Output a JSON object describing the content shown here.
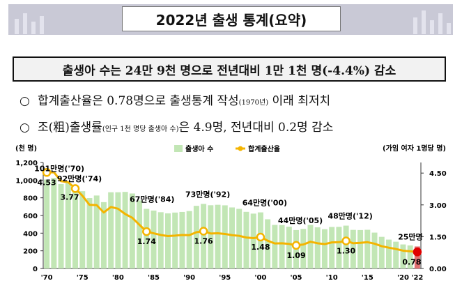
{
  "header": {
    "title": "2022년 출생 통계(요약)"
  },
  "summary": "출생아 수는 24만 9천 명으로 전년대비 1만 1천 명(-4.4%) 감소",
  "bullets": [
    {
      "marker": "○",
      "text_a": "합계출산율은 0.78명으로 출생통계 작성",
      "small": "(1970년)",
      "text_b": " 이래 최저치"
    },
    {
      "marker": "○",
      "text_a": "조(粗)출생률",
      "small": "(인구 1천 명당 출생아 수)",
      "text_b": "은 4.9명, 전년대비 0.2명 감소"
    }
  ],
  "colors": {
    "bar": "#c2e6b5",
    "bar_2022": "#e07070",
    "line": "#f4b400",
    "point_2022": "#e00000"
  },
  "chart_data": {
    "type": "bar",
    "left_unit": "(천 명)",
    "right_unit": "(가임 여자 1명당 명)",
    "legend": {
      "births": "출생아 수",
      "tfr": "합계출산율"
    },
    "x_tick_labels": [
      "'70",
      "'75",
      "'80",
      "'85",
      "'90",
      "'95",
      "'00",
      "'05",
      "'10",
      "'15",
      "'20",
      "'22"
    ],
    "y_left": {
      "min": 0,
      "max": 1200,
      "ticks": [
        0,
        200,
        400,
        600,
        800,
        "1,000",
        "1,200"
      ]
    },
    "y_right": {
      "min": 0,
      "max": 5.0,
      "ticks": [
        "0.00",
        "1.50",
        "3.00",
        "4.50"
      ]
    },
    "years": [
      1970,
      1971,
      1972,
      1973,
      1974,
      1975,
      1976,
      1977,
      1978,
      1979,
      1980,
      1981,
      1982,
      1983,
      1984,
      1985,
      1986,
      1987,
      1988,
      1989,
      1990,
      1991,
      1992,
      1993,
      1994,
      1995,
      1996,
      1997,
      1998,
      1999,
      2000,
      2001,
      2002,
      2003,
      2004,
      2005,
      2006,
      2007,
      2008,
      2009,
      2010,
      2011,
      2012,
      2013,
      2014,
      2015,
      2016,
      2017,
      2018,
      2019,
      2020,
      2021,
      2022
    ],
    "births": [
      1007,
      1025,
      956,
      967,
      924,
      875,
      797,
      826,
      751,
      863,
      863,
      867,
      849,
      770,
      675,
      656,
      637,
      624,
      633,
      640,
      650,
      709,
      731,
      716,
      721,
      715,
      691,
      675,
      641,
      621,
      635,
      557,
      493,
      491,
      473,
      435,
      448,
      493,
      466,
      445,
      470,
      471,
      485,
      437,
      435,
      438,
      406,
      358,
      327,
      303,
      272,
      261,
      249
    ],
    "tfr": [
      4.53,
      4.54,
      4.12,
      4.07,
      3.77,
      3.43,
      3.0,
      2.99,
      2.64,
      2.9,
      2.82,
      2.57,
      2.39,
      2.06,
      1.74,
      1.66,
      1.58,
      1.53,
      1.55,
      1.58,
      1.57,
      1.71,
      1.76,
      1.65,
      1.66,
      1.63,
      1.57,
      1.54,
      1.46,
      1.43,
      1.48,
      1.31,
      1.18,
      1.19,
      1.16,
      1.09,
      1.13,
      1.26,
      1.19,
      1.15,
      1.23,
      1.24,
      1.3,
      1.19,
      1.21,
      1.24,
      1.17,
      1.05,
      0.98,
      0.92,
      0.84,
      0.81,
      0.78
    ],
    "birth_labels": [
      {
        "year": 1970,
        "text": "101만명('70)"
      },
      {
        "year": 1974,
        "text": "92만명('74)"
      },
      {
        "year": 1984,
        "text": "67만명('84)"
      },
      {
        "year": 1992,
        "text": "73만명('92)"
      },
      {
        "year": 2000,
        "text": "64만명('00)"
      },
      {
        "year": 2005,
        "text": "44만명('05)"
      },
      {
        "year": 2012,
        "text": "48만명('12)"
      },
      {
        "year": 2022,
        "text": "25만명"
      }
    ],
    "tfr_labels": [
      {
        "year": 1970,
        "text": "4.53"
      },
      {
        "year": 1974,
        "text": "3.77"
      },
      {
        "year": 1984,
        "text": "1.74"
      },
      {
        "year": 1992,
        "text": "1.76"
      },
      {
        "year": 2000,
        "text": "1.48"
      },
      {
        "year": 2005,
        "text": "1.09"
      },
      {
        "year": 2012,
        "text": "1.30"
      },
      {
        "year": 2022,
        "text": "0.78"
      }
    ]
  }
}
